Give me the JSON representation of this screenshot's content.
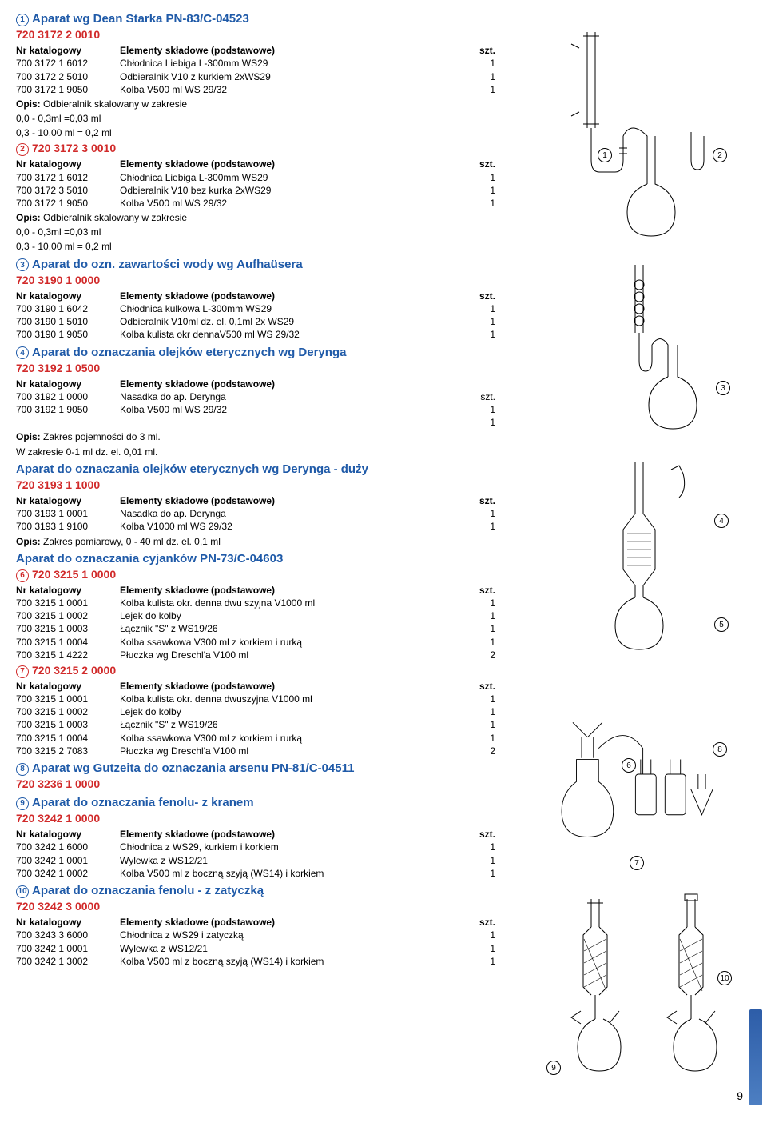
{
  "page_number": "9",
  "sections": [
    {
      "num": "1",
      "title": "Aparat wg Dean Starka PN-83/C-04523",
      "code": "720 3172 2 0010",
      "header": [
        "Nr katalogowy",
        "Elementy składowe (podstawowe)",
        "szt."
      ],
      "rows": [
        [
          "700 3172 1 6012",
          "Chłodnica Liebiga L-300mm  WS29",
          "1"
        ],
        [
          "700 3172 2 5010",
          "Odbieralnik V10 z kurkiem 2xWS29",
          "1"
        ],
        [
          "700 3172 1 9050",
          "Kolba V500 ml WS 29/32",
          "1"
        ]
      ],
      "notes": [
        "Opis: Odbieralnik skalowany w zakresie",
        "0,0 - 0,3ml =0,03 ml",
        "0,3 - 10,00 ml = 0,2 ml"
      ]
    },
    {
      "num": "2",
      "code": "720 3172 3 0010",
      "header": [
        "Nr katalogowy",
        "Elementy składowe (podstawowe)",
        "szt."
      ],
      "rows": [
        [
          "700 3172 1 6012",
          "Chłodnica Liebiga L-300mm  WS29",
          "1"
        ],
        [
          "700 3172 3 5010",
          "Odbieralnik V10 bez kurka 2xWS29",
          "1"
        ],
        [
          "700 3172 1 9050",
          "Kolba V500 ml WS 29/32",
          "1"
        ]
      ],
      "notes": [
        "Opis: Odbieralnik skalowany w zakresie",
        "0,0 - 0,3ml =0,03 ml",
        "0,3 - 10,00 ml = 0,2 ml"
      ]
    },
    {
      "num": "3",
      "title": "Aparat do ozn. zawartości wody wg Aufhaüsera",
      "code": "720 3190 1 0000",
      "header": [
        "Nr katalogowy",
        "Elementy składowe (podstawowe)",
        "szt."
      ],
      "rows": [
        [
          "700 3190 1 6042",
          "Chłodnica kulkowa L-300mm  WS29",
          "1"
        ],
        [
          "700 3190 1 5010",
          "Odbieralnik V10ml dz. el. 0,1ml 2x WS29",
          "1"
        ],
        [
          "700 3190 1 9050",
          "Kolba kulista okr dennaV500 ml WS 29/32",
          "1"
        ]
      ]
    },
    {
      "num": "4",
      "title": "Aparat do oznaczania olejków eterycznych wg Derynga",
      "code": "720 3192 1 0500",
      "header": [
        "Nr katalogowy",
        "Elementy składowe (podstawowe)",
        ""
      ],
      "rows": [
        [
          "700 3192 1 0000",
          "Nasadka do ap. Derynga",
          "szt."
        ],
        [
          "700 3192 1 9050",
          "Kolba V500 ml WS 29/32",
          "1"
        ],
        [
          "",
          "",
          "1"
        ]
      ],
      "notes": [
        "Opis:  Zakres pojemności do 3 ml.",
        "W zakresie 0-1 ml dz. el. 0,01 ml."
      ]
    },
    {
      "title": "Aparat do oznaczania olejków eterycznych wg Derynga - duży",
      "code": "720 3193 1 1000",
      "header": [
        "Nr katalogowy",
        "Elementy składowe (podstawowe)",
        "szt."
      ],
      "rows": [
        [
          "700 3193 1 0001",
          "Nasadka do ap. Derynga",
          "1"
        ],
        [
          "700 3193 1 9100",
          "Kolba V1000 ml WS 29/32",
          "1"
        ]
      ],
      "notes": [
        "Opis: Zakres pomiarowy, 0 - 40 ml dz. el. 0,1 ml"
      ]
    },
    {
      "title": "Aparat do oznaczania cyjanków  PN-73/C-04603"
    },
    {
      "num": "6",
      "code": "720 3215 1 0000",
      "header": [
        "Nr katalogowy",
        "Elementy składowe (podstawowe)",
        "szt."
      ],
      "rows": [
        [
          "700 3215 1 0001",
          "Kolba kulista okr. denna dwu szyjna V1000 ml",
          "1"
        ],
        [
          "700 3215 1 0002",
          "Lejek do kolby",
          "1"
        ],
        [
          "700 3215 1 0003",
          "Łącznik \"S\" z WS19/26",
          "1"
        ],
        [
          "700 3215 1 0004",
          "Kolba ssawkowa V300 ml z korkiem i rurką",
          "1"
        ],
        [
          "700 3215 1 4222",
          "Płuczka wg Dreschl'a V100 ml",
          "2"
        ]
      ]
    },
    {
      "num": "7",
      "code": "720 3215 2 0000",
      "header": [
        "Nr katalogowy",
        "Elementy składowe (podstawowe)",
        "szt."
      ],
      "rows": [
        [
          "700 3215 1 0001",
          "Kolba kulista okr. denna dwuszyjna V1000 ml",
          "1"
        ],
        [
          "700 3215 1 0002",
          "Lejek do kolby",
          "1"
        ],
        [
          "700 3215 1 0003",
          "Łącznik \"S\" z WS19/26",
          "1"
        ],
        [
          "700 3215 1 0004",
          "Kolba ssawkowa V300 ml z korkiem i rurką",
          "1"
        ],
        [
          "700 3215 2 7083",
          "Płuczka wg Dreschl'a V100 ml",
          "2"
        ]
      ]
    },
    {
      "num": "8",
      "title": "Aparat wg Gutzeita do oznaczania arsenu PN-81/C-04511",
      "code": "720 3236 1 0000"
    },
    {
      "num": "9",
      "title": "Aparat do oznaczania fenolu- z kranem",
      "code": "720 3242 1 0000",
      "header": [
        "Nr katalogowy",
        "Elementy składowe (podstawowe)",
        "szt."
      ],
      "rows": [
        [
          "700 3242 1 6000",
          "Chłodnica z WS29, kurkiem i korkiem",
          "1"
        ],
        [
          "700 3242 1 0001",
          "Wylewka z WS12/21",
          "1"
        ],
        [
          "700 3242 1 0002",
          "Kolba V500 ml z boczną szyją (WS14) i korkiem",
          "1"
        ]
      ]
    },
    {
      "num": "10",
      "title": "Aparat do oznaczania fenolu - z zatyczką",
      "code": "720 3242 3 0000",
      "header": [
        "Nr katalogowy",
        "Elementy składowe (podstawowe)",
        "szt."
      ],
      "rows": [
        [
          "700 3243 3 6000",
          "Chłodnica z WS29 i zatyczką",
          "1"
        ],
        [
          "700 3242 1 0001",
          "Wylewka z WS12/21",
          "1"
        ],
        [
          "700 3242 1 3002",
          "Kolba V500 ml z boczną szyją (WS14) i korkiem",
          "1"
        ]
      ]
    }
  ]
}
